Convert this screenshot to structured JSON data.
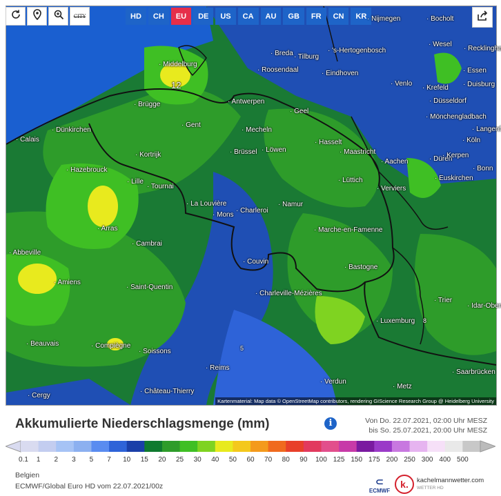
{
  "toolbar": {
    "reload_icon": "reload-icon",
    "location_icon": "location-pin-icon",
    "zoom_icon": "zoom-icon",
    "city_label": "CITY"
  },
  "regions": [
    {
      "label": "HD",
      "active": false
    },
    {
      "label": "CH",
      "active": false
    },
    {
      "label": "EU",
      "active": true
    },
    {
      "label": "DE",
      "active": false
    },
    {
      "label": "US",
      "active": false
    },
    {
      "label": "CA",
      "active": false
    },
    {
      "label": "AU",
      "active": false
    },
    {
      "label": "GB",
      "active": false
    },
    {
      "label": "FR",
      "active": false
    },
    {
      "label": "CN",
      "active": false
    },
    {
      "label": "KR",
      "active": false
    }
  ],
  "cities": [
    "Nijmegen",
    "Bocholt",
    "Wesel",
    "Recklinghausen",
    "Breda",
    "Tilburg",
    "'s-Hertogenbosch",
    "Essen",
    "Middelburg",
    "Roosendaal",
    "Eindhoven",
    "Venlo",
    "Krefeld",
    "Duisburg",
    "Düsseldorf",
    "Brügge",
    "Antwerpen",
    "Geel",
    "Mönchengladbach",
    "Langenfeld",
    "Calais",
    "Dünkirchen",
    "Gent",
    "Mecheln",
    "Köln",
    "Kortrijk",
    "Brüssel",
    "Löwen",
    "Hasselt",
    "Maastricht",
    "Düren",
    "Kerpen",
    "Hazebrouck",
    "Aachen",
    "Bonn",
    "Lille",
    "Tournai",
    "Lüttich",
    "Verviers",
    "Euskirchen",
    "La Louvière",
    "Mons",
    "Charleroi",
    "Namur",
    "Arras",
    "Cambrai",
    "Marche-en-Famenne",
    "Abbeville",
    "Couvin",
    "Bastogne",
    "Amiens",
    "Saint-Quentin",
    "Charleville-Mézières",
    "Trier",
    "Idar-Oberstein",
    "Luxemburg",
    "Beauvais",
    "Compiègne",
    "Soissons",
    "Reims",
    "Verdun",
    "Metz",
    "Saarbrücken",
    "Château-Thierry",
    "Cergy"
  ],
  "map_labels": [
    "12",
    "5",
    "8"
  ],
  "credit": "Kartenmaterial: Map data © OpenStreetMap contributors, rendering GIScience Research Group @ Heidelberg University",
  "legend": {
    "title": "Akkumulierte Niederschlagsmenge (mm)",
    "period_line1": "Von Do. 22.07.2021, 02:00 Uhr MESZ",
    "period_line2": "bis So. 25.07.2021, 20:00 Uhr MESZ",
    "ticks": [
      "0.1",
      "1",
      "2",
      "3",
      "5",
      "7",
      "10",
      "15",
      "20",
      "25",
      "30",
      "40",
      "50",
      "60",
      "70",
      "80",
      "90",
      "100",
      "125",
      "150",
      "175",
      "200",
      "250",
      "300",
      "400",
      "500"
    ],
    "colors": [
      "#d9dbf0",
      "#c3cdf0",
      "#a6c3f5",
      "#8cb0f0",
      "#5a8cf0",
      "#2e63d8",
      "#1a3fa8",
      "#0f7a2f",
      "#2e9c2a",
      "#3fbf24",
      "#7fd321",
      "#e8ea1e",
      "#f4c81c",
      "#f49a1c",
      "#f06a1e",
      "#e8402a",
      "#e23a5e",
      "#e24f8c",
      "#c73aa8",
      "#7a1aa0",
      "#9a3ac8",
      "#c878e0",
      "#e6b4f0",
      "#f6e0f8",
      "#e9e9e9",
      "#c8c8c8"
    ],
    "info_icon": "info-icon"
  },
  "region_name": "Belgien",
  "model_run": "ECMWF/Global Euro HD vom 22.07.2021/00z",
  "logos": {
    "ecmwf": "ECMWF",
    "kachel_name": "kachelmannwetter.com",
    "kachel_sub": "WETTER HD"
  }
}
